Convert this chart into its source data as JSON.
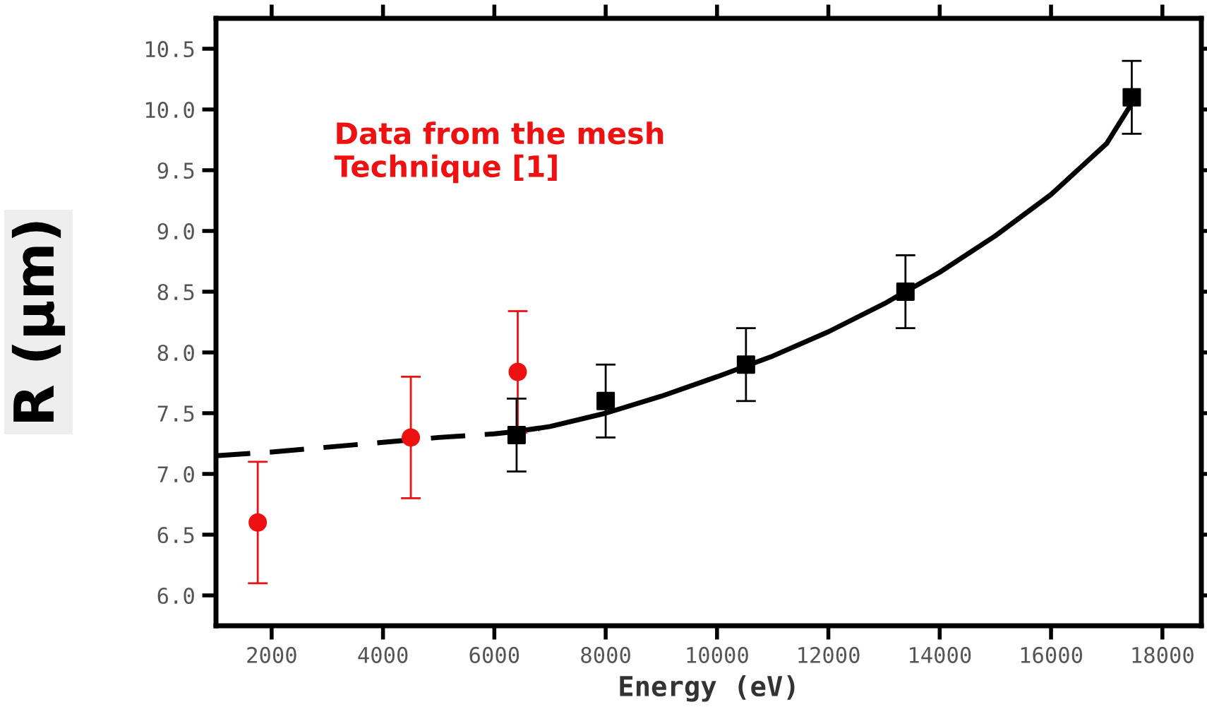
{
  "chart_data": {
    "type": "scatter",
    "xlabel": "Energy (eV)",
    "ylabel": "R (μm)",
    "annotations": [
      "Data from the mesh\nTechnique [1]"
    ],
    "xlim": [
      1000,
      18700
    ],
    "xticks": [
      2000,
      4000,
      6000,
      8000,
      10000,
      12000,
      14000,
      16000,
      18000
    ],
    "ylim": [
      5.75,
      10.75
    ],
    "yticks": [
      {
        "value": 6.0,
        "label": "6.0"
      },
      {
        "value": 6.5,
        "label": "6.5"
      },
      {
        "value": 7.0,
        "label": "7.0"
      },
      {
        "value": 7.5,
        "label": "7.5"
      },
      {
        "value": 8.0,
        "label": "8.0"
      },
      {
        "value": 8.5,
        "label": "8.5"
      },
      {
        "value": 9.0,
        "label": "9.0"
      },
      {
        "value": 9.5,
        "label": "9.5"
      },
      {
        "value": 10.0,
        "label": "10.0"
      },
      {
        "value": 10.5,
        "label": "10.5"
      }
    ],
    "grid": false,
    "legend": false,
    "series": [
      {
        "type": "line",
        "color": "#000000",
        "line_style": "dashed",
        "marker": "none",
        "x": [
          1000,
          2000,
          3000,
          4000,
          5000,
          6000,
          6800
        ],
        "values": [
          7.15,
          7.18,
          7.22,
          7.26,
          7.3,
          7.33,
          7.37
        ]
      },
      {
        "type": "line",
        "color": "#000000",
        "line_style": "solid",
        "marker": "none",
        "x": [
          6400,
          7000,
          8000,
          9000,
          10000,
          11000,
          12000,
          13000,
          14000,
          15000,
          16000,
          17000,
          17450
        ],
        "values": [
          7.35,
          7.39,
          7.5,
          7.64,
          7.8,
          7.97,
          8.17,
          8.4,
          8.66,
          8.96,
          9.3,
          9.72,
          10.05
        ]
      },
      {
        "color": "#ee1111",
        "marker": "circle",
        "x": [
          1750,
          4500,
          6420
        ],
        "values": [
          6.6,
          7.3,
          7.84
        ],
        "errors": [
          0.5,
          0.5,
          0.5
        ]
      },
      {
        "color": "#000000",
        "marker": "square",
        "x": [
          6400,
          8000,
          10520,
          13385,
          17450
        ],
        "values": [
          7.32,
          7.6,
          7.9,
          8.5,
          10.1
        ],
        "errors": [
          0.3,
          0.3,
          0.3,
          0.3,
          0.3
        ]
      }
    ]
  }
}
